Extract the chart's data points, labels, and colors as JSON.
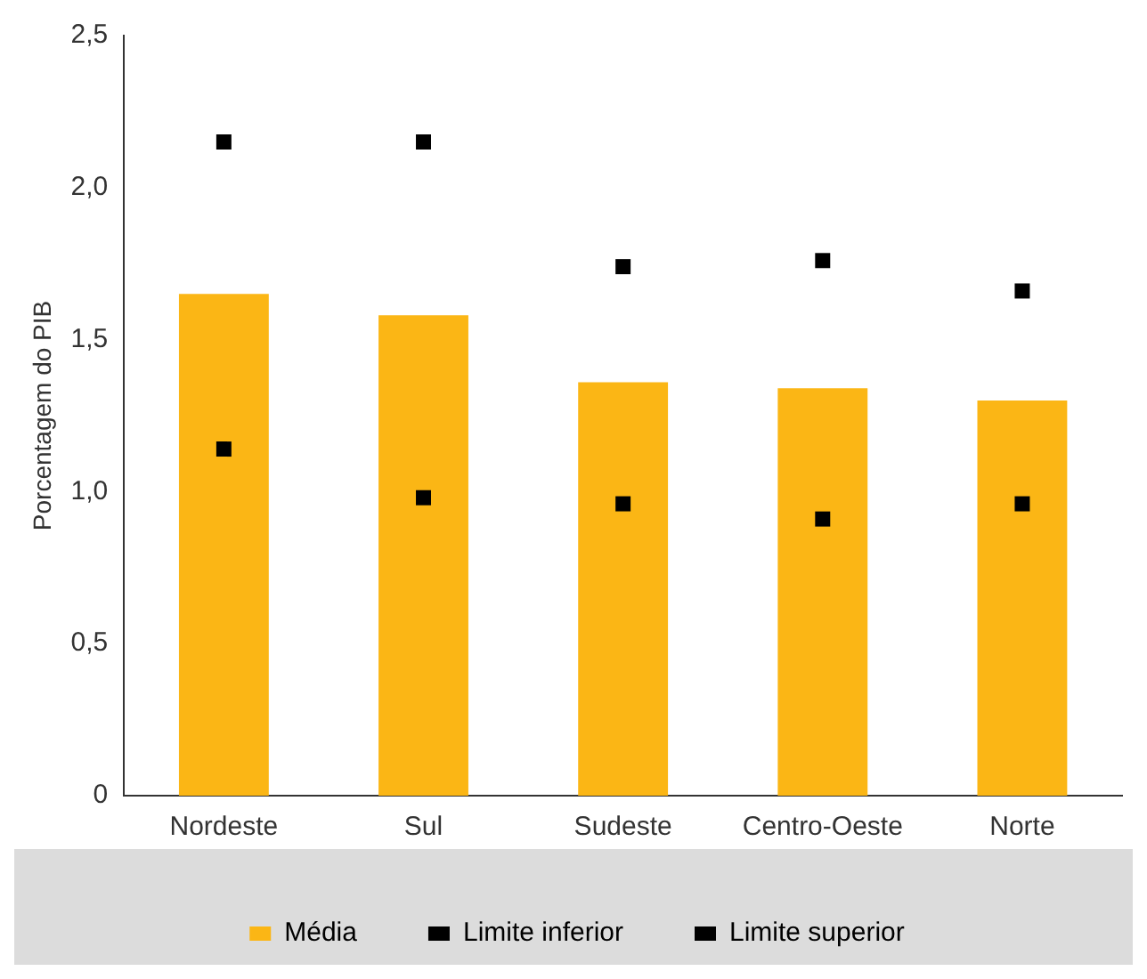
{
  "chart_data": {
    "type": "bar",
    "ylabel": "Porcentagem do PIB",
    "categories": [
      "Nordeste",
      "Sul",
      "Sudeste",
      "Centro-Oeste",
      "Norte"
    ],
    "series": [
      {
        "name": "Média",
        "color": "#fbb615",
        "values": [
          1.65,
          1.58,
          1.36,
          1.34,
          1.3
        ]
      },
      {
        "name": "Limite inferior",
        "type": "scatter",
        "color": "#000000",
        "marker": "square",
        "x": [
          "Nordeste",
          "Sul",
          "Sudeste",
          "Centro-Oeste",
          "Norte"
        ],
        "values": [
          1.14,
          0.98,
          0.96,
          0.91,
          0.96
        ]
      },
      {
        "name": "Limite superior",
        "type": "scatter",
        "color": "#000000",
        "marker": "square",
        "x": [
          "Nordeste",
          "Sul",
          "Sudeste",
          "Centro-Oeste",
          "Norte"
        ],
        "values": [
          2.15,
          2.15,
          1.74,
          1.76,
          1.66
        ]
      }
    ],
    "ylim": [
      0,
      2.5
    ],
    "yticks": [
      {
        "value": 0,
        "label": "0"
      },
      {
        "value": 0.5,
        "label": "0,5"
      },
      {
        "value": 1,
        "label": "1,0"
      },
      {
        "value": 1.5,
        "label": "1,5"
      },
      {
        "value": 2,
        "label": "2,0"
      },
      {
        "value": 2.5,
        "label": "2,5"
      }
    ],
    "grid": false,
    "legend": "bottom"
  }
}
